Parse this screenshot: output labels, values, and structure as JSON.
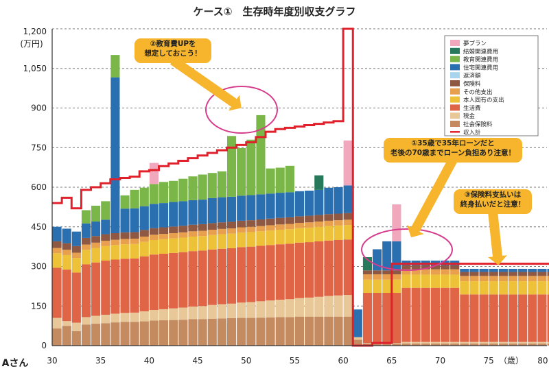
{
  "header": {
    "title": "ケース①　生存時年度別収支グラフ",
    "person": "Aさん"
  },
  "chart_data": {
    "type": "bar",
    "y_unit": "(万円)",
    "x_unit": "（歳）",
    "ylim": [
      0,
      1200
    ],
    "yticks": [
      0,
      150,
      300,
      450,
      600,
      750,
      900,
      1050,
      1200
    ],
    "ytick_labels": [
      "0",
      "150",
      "300",
      "450",
      "600",
      "750",
      "900",
      "1,050",
      "1,200"
    ],
    "xticks": [
      30,
      35,
      40,
      45,
      50,
      55,
      60,
      65,
      70,
      75,
      80
    ],
    "x_start": 30,
    "x_end": 81,
    "ages": [
      30,
      31,
      32,
      33,
      34,
      35,
      36,
      37,
      38,
      39,
      40,
      41,
      42,
      43,
      44,
      45,
      46,
      47,
      48,
      49,
      50,
      51,
      52,
      53,
      54,
      55,
      56,
      57,
      58,
      59,
      60,
      61,
      62,
      63,
      64,
      65,
      66,
      67,
      68,
      69,
      70,
      71,
      72,
      73,
      74,
      75,
      76,
      77,
      78,
      79,
      80,
      81
    ],
    "legend": [
      {
        "name": "夢プラン",
        "color": "#f2a8bc"
      },
      {
        "name": "結婚関連費用",
        "color": "#26795a"
      },
      {
        "name": "教育関連費用",
        "color": "#7ab648"
      },
      {
        "name": "住宅関連費用",
        "color": "#2a6fb0"
      },
      {
        "name": "返済額",
        "color": "#a9d4ee"
      },
      {
        "name": "保険料",
        "color": "#8e5842"
      },
      {
        "name": "その他支出",
        "color": "#e8a04e"
      },
      {
        "name": "本人固有の支出",
        "color": "#edc238"
      },
      {
        "name": "生活費",
        "color": "#e06446"
      },
      {
        "name": "税金",
        "color": "#e8c898"
      },
      {
        "name": "社会保険料",
        "color": "#c48a60"
      },
      {
        "name": "収入計",
        "color": "#e0202a"
      }
    ],
    "series": [
      {
        "name": "社会保険料",
        "values": [
          65,
          75,
          55,
          80,
          83,
          85,
          88,
          90,
          90,
          92,
          95,
          96,
          97,
          98,
          100,
          100,
          102,
          103,
          104,
          105,
          105,
          106,
          107,
          108,
          108,
          110,
          110,
          110,
          110,
          110,
          110,
          22,
          8,
          8,
          8,
          8,
          8,
          8,
          8,
          8,
          8,
          8,
          8,
          8,
          8,
          8,
          8,
          8,
          8,
          8,
          8,
          8
        ]
      },
      {
        "name": "税金",
        "values": [
          40,
          18,
          32,
          28,
          30,
          32,
          33,
          34,
          35,
          38,
          40,
          42,
          44,
          46,
          48,
          50,
          52,
          54,
          55,
          58,
          60,
          62,
          64,
          66,
          68,
          70,
          72,
          75,
          78,
          80,
          82,
          10,
          2,
          2,
          2,
          2,
          6,
          6,
          6,
          6,
          6,
          6,
          6,
          6,
          6,
          6,
          6,
          6,
          6,
          6,
          6,
          6
        ]
      },
      {
        "name": "生活費",
        "values": [
          190,
          195,
          190,
          200,
          202,
          205,
          205,
          205,
          205,
          208,
          210,
          210,
          210,
          210,
          210,
          210,
          210,
          210,
          210,
          210,
          210,
          210,
          210,
          210,
          210,
          210,
          210,
          210,
          210,
          210,
          210,
          0,
          190,
          190,
          190,
          190,
          205,
          205,
          205,
          205,
          205,
          205,
          180,
          180,
          180,
          180,
          180,
          180,
          180,
          180,
          180,
          180
        ]
      },
      {
        "name": "本人固有の支出",
        "values": [
          55,
          55,
          55,
          55,
          55,
          55,
          55,
          55,
          55,
          55,
          55,
          55,
          55,
          55,
          55,
          55,
          55,
          55,
          55,
          55,
          55,
          55,
          55,
          55,
          55,
          55,
          55,
          55,
          55,
          55,
          55,
          0,
          50,
          50,
          50,
          50,
          50,
          50,
          50,
          50,
          50,
          50,
          50,
          50,
          50,
          50,
          50,
          50,
          50,
          50,
          50,
          50
        ]
      },
      {
        "name": "その他支出",
        "values": [
          20,
          20,
          20,
          20,
          20,
          20,
          20,
          20,
          20,
          20,
          20,
          20,
          20,
          20,
          20,
          20,
          20,
          20,
          20,
          20,
          20,
          20,
          20,
          20,
          20,
          20,
          20,
          20,
          20,
          20,
          20,
          0,
          20,
          20,
          20,
          20,
          20,
          20,
          20,
          20,
          20,
          20,
          20,
          20,
          20,
          20,
          20,
          20,
          20,
          20,
          20,
          20
        ]
      },
      {
        "name": "保険料",
        "values": [
          25,
          25,
          25,
          25,
          25,
          25,
          25,
          25,
          25,
          25,
          25,
          25,
          25,
          25,
          25,
          25,
          25,
          25,
          25,
          25,
          25,
          25,
          25,
          25,
          25,
          25,
          25,
          25,
          25,
          25,
          25,
          0,
          15,
          15,
          15,
          15,
          15,
          15,
          15,
          15,
          15,
          15,
          15,
          15,
          15,
          15,
          15,
          15,
          15,
          15,
          15,
          15
        ]
      },
      {
        "name": "返済額",
        "values": [
          0,
          0,
          0,
          0,
          0,
          0,
          0,
          0,
          0,
          0,
          0,
          0,
          0,
          0,
          0,
          0,
          0,
          0,
          0,
          0,
          0,
          0,
          0,
          0,
          0,
          0,
          0,
          0,
          0,
          0,
          0,
          0,
          0,
          0,
          0,
          0,
          0,
          0,
          0,
          0,
          0,
          0,
          0,
          0,
          0,
          0,
          0,
          0,
          0,
          0,
          0,
          0
        ]
      },
      {
        "name": "住宅関連費用",
        "values": [
          55,
          55,
          55,
          55,
          55,
          55,
          590,
          90,
          90,
          90,
          92,
          92,
          93,
          93,
          93,
          93,
          95,
          95,
          95,
          95,
          95,
          95,
          95,
          95,
          95,
          95,
          95,
          95,
          100,
          100,
          105,
          105,
          0,
          80,
          110,
          110,
          18,
          18,
          18,
          18,
          18,
          18,
          12,
          12,
          12,
          12,
          12,
          12,
          12,
          12,
          12,
          12
        ]
      },
      {
        "name": "教育関連費用",
        "values": [
          0,
          0,
          0,
          50,
          60,
          70,
          85,
          50,
          70,
          70,
          75,
          80,
          80,
          85,
          90,
          95,
          95,
          98,
          230,
          180,
          210,
          300,
          95,
          95,
          100,
          0,
          0,
          0,
          0,
          0,
          0,
          0,
          0,
          0,
          0,
          0,
          0,
          0,
          0,
          0,
          0,
          0,
          0,
          0,
          0,
          0,
          0,
          0,
          0,
          0,
          0,
          0
        ]
      },
      {
        "name": "結婚関連費用",
        "values": [
          0,
          0,
          0,
          0,
          0,
          0,
          0,
          0,
          0,
          0,
          0,
          0,
          0,
          0,
          0,
          0,
          0,
          0,
          0,
          0,
          0,
          0,
          0,
          0,
          0,
          0,
          0,
          55,
          0,
          0,
          0,
          0,
          50,
          0,
          0,
          0,
          0,
          0,
          0,
          0,
          0,
          0,
          0,
          0,
          0,
          0,
          0,
          0,
          0,
          0,
          0,
          0
        ]
      },
      {
        "name": "夢プラン",
        "values": [
          0,
          0,
          0,
          0,
          0,
          0,
          0,
          0,
          0,
          0,
          80,
          0,
          0,
          0,
          0,
          0,
          0,
          0,
          0,
          0,
          0,
          0,
          0,
          0,
          0,
          0,
          0,
          0,
          0,
          0,
          170,
          0,
          0,
          0,
          0,
          140,
          0,
          0,
          0,
          0,
          0,
          0,
          0,
          0,
          0,
          0,
          0,
          0,
          0,
          0,
          0,
          0
        ]
      },
      {
        "name": "収入計",
        "values": [
          540,
          560,
          520,
          590,
          600,
          615,
          630,
          635,
          640,
          660,
          665,
          680,
          690,
          700,
          710,
          720,
          730,
          740,
          750,
          760,
          770,
          790,
          810,
          820,
          825,
          830,
          835,
          840,
          845,
          850,
          1200,
          0,
          0,
          10,
          10,
          310,
          310,
          310,
          310,
          310,
          310,
          310,
          310,
          310,
          310,
          310,
          310,
          310,
          310,
          310,
          310,
          310
        ]
      }
    ],
    "annotations": [
      {
        "text": "②教育費UPを\n想定しておこう！",
        "target": [
          49.5,
          900
        ]
      },
      {
        "text": "①35歳で35年ローンだと\n老後の70歳までローン負担あり注意！",
        "target": [
          67,
          410
        ]
      },
      {
        "text": "③保険料支払いは\n終身払いだと注意！",
        "target": [
          76,
          305
        ]
      }
    ]
  }
}
